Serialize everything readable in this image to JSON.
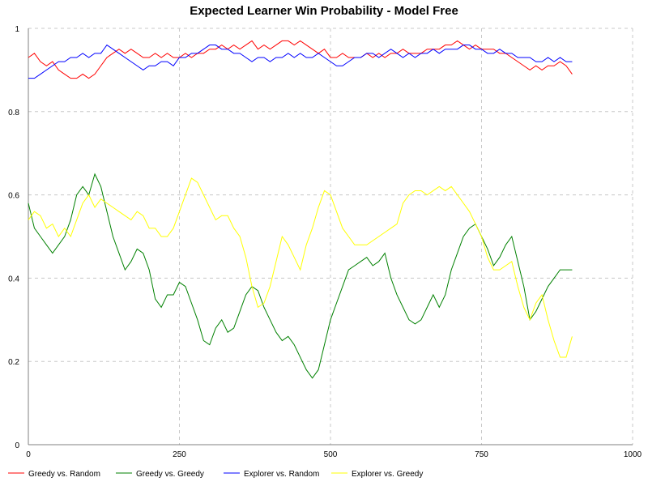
{
  "chart_data": {
    "type": "line",
    "title": "Expected Learner Win Probability - Model Free",
    "xlabel": "",
    "ylabel": "",
    "xlim": [
      0,
      1000
    ],
    "ylim": [
      0,
      1
    ],
    "x_ticks": [
      0,
      250,
      500,
      750,
      1000
    ],
    "x_tick_labels": [
      "0",
      "250",
      "500",
      "750",
      "1000"
    ],
    "y_ticks": [
      0,
      0.2,
      0.4,
      0.6,
      0.8,
      1
    ],
    "y_tick_labels": [
      "0",
      "0.2",
      "0.4",
      "0.6",
      "0.8",
      "1"
    ],
    "grid": true,
    "legend_position": "bottom",
    "x": [
      0,
      10,
      20,
      30,
      40,
      50,
      60,
      70,
      80,
      90,
      100,
      110,
      120,
      130,
      140,
      150,
      160,
      170,
      180,
      190,
      200,
      210,
      220,
      230,
      240,
      250,
      260,
      270,
      280,
      290,
      300,
      310,
      320,
      330,
      340,
      350,
      360,
      370,
      380,
      390,
      400,
      410,
      420,
      430,
      440,
      450,
      460,
      470,
      480,
      490,
      500,
      510,
      520,
      530,
      540,
      550,
      560,
      570,
      580,
      590,
      600,
      610,
      620,
      630,
      640,
      650,
      660,
      670,
      680,
      690,
      700,
      710,
      720,
      730,
      740,
      750,
      760,
      770,
      780,
      790,
      800,
      810,
      820,
      830,
      840,
      850,
      860,
      870,
      880,
      890,
      900
    ],
    "series": [
      {
        "name": "Greedy vs. Random",
        "color": "#ff0000",
        "values": [
          0.93,
          0.94,
          0.92,
          0.91,
          0.92,
          0.9,
          0.89,
          0.88,
          0.88,
          0.89,
          0.88,
          0.89,
          0.91,
          0.93,
          0.94,
          0.95,
          0.94,
          0.95,
          0.94,
          0.93,
          0.93,
          0.94,
          0.93,
          0.94,
          0.93,
          0.93,
          0.94,
          0.93,
          0.94,
          0.94,
          0.95,
          0.95,
          0.96,
          0.95,
          0.96,
          0.95,
          0.96,
          0.97,
          0.95,
          0.96,
          0.95,
          0.96,
          0.97,
          0.97,
          0.96,
          0.97,
          0.96,
          0.95,
          0.94,
          0.95,
          0.93,
          0.93,
          0.94,
          0.93,
          0.93,
          0.93,
          0.94,
          0.93,
          0.94,
          0.93,
          0.94,
          0.94,
          0.95,
          0.94,
          0.94,
          0.94,
          0.95,
          0.95,
          0.95,
          0.96,
          0.96,
          0.97,
          0.96,
          0.95,
          0.96,
          0.95,
          0.95,
          0.95,
          0.94,
          0.94,
          0.93,
          0.92,
          0.91,
          0.9,
          0.91,
          0.9,
          0.91,
          0.91,
          0.92,
          0.91,
          0.89
        ]
      },
      {
        "name": "Greedy vs. Greedy",
        "color": "#008000",
        "values": [
          0.58,
          0.52,
          0.5,
          0.48,
          0.46,
          0.48,
          0.5,
          0.54,
          0.6,
          0.62,
          0.6,
          0.65,
          0.62,
          0.56,
          0.5,
          0.46,
          0.42,
          0.44,
          0.47,
          0.46,
          0.42,
          0.35,
          0.33,
          0.36,
          0.36,
          0.39,
          0.38,
          0.34,
          0.3,
          0.25,
          0.24,
          0.28,
          0.3,
          0.27,
          0.28,
          0.32,
          0.36,
          0.38,
          0.37,
          0.33,
          0.3,
          0.27,
          0.25,
          0.26,
          0.24,
          0.21,
          0.18,
          0.16,
          0.18,
          0.24,
          0.3,
          0.34,
          0.38,
          0.42,
          0.43,
          0.44,
          0.45,
          0.43,
          0.44,
          0.46,
          0.4,
          0.36,
          0.33,
          0.3,
          0.29,
          0.3,
          0.33,
          0.36,
          0.33,
          0.36,
          0.42,
          0.46,
          0.5,
          0.52,
          0.53,
          0.5,
          0.47,
          0.43,
          0.45,
          0.48,
          0.5,
          0.44,
          0.38,
          0.3,
          0.32,
          0.35,
          0.38,
          0.4,
          0.42,
          0.42,
          0.42
        ]
      },
      {
        "name": "Explorer vs. Random",
        "color": "#0000ff",
        "values": [
          0.88,
          0.88,
          0.89,
          0.9,
          0.91,
          0.92,
          0.92,
          0.93,
          0.93,
          0.94,
          0.93,
          0.94,
          0.94,
          0.96,
          0.95,
          0.94,
          0.93,
          0.92,
          0.91,
          0.9,
          0.91,
          0.91,
          0.92,
          0.92,
          0.91,
          0.93,
          0.93,
          0.94,
          0.94,
          0.95,
          0.96,
          0.96,
          0.95,
          0.95,
          0.94,
          0.94,
          0.93,
          0.92,
          0.93,
          0.93,
          0.92,
          0.93,
          0.93,
          0.94,
          0.93,
          0.94,
          0.93,
          0.93,
          0.94,
          0.93,
          0.92,
          0.91,
          0.91,
          0.92,
          0.93,
          0.93,
          0.94,
          0.94,
          0.93,
          0.94,
          0.95,
          0.94,
          0.93,
          0.94,
          0.93,
          0.94,
          0.94,
          0.95,
          0.94,
          0.95,
          0.95,
          0.95,
          0.96,
          0.96,
          0.95,
          0.95,
          0.94,
          0.94,
          0.95,
          0.94,
          0.94,
          0.93,
          0.93,
          0.93,
          0.92,
          0.92,
          0.93,
          0.92,
          0.93,
          0.92,
          0.92
        ]
      },
      {
        "name": "Explorer vs. Greedy",
        "color": "#ffff00",
        "values": [
          0.54,
          0.56,
          0.55,
          0.52,
          0.53,
          0.5,
          0.52,
          0.5,
          0.54,
          0.58,
          0.6,
          0.57,
          0.59,
          0.58,
          0.57,
          0.56,
          0.55,
          0.54,
          0.56,
          0.55,
          0.52,
          0.52,
          0.5,
          0.5,
          0.52,
          0.56,
          0.6,
          0.64,
          0.63,
          0.6,
          0.57,
          0.54,
          0.55,
          0.55,
          0.52,
          0.5,
          0.45,
          0.38,
          0.33,
          0.34,
          0.38,
          0.44,
          0.5,
          0.48,
          0.45,
          0.42,
          0.48,
          0.52,
          0.57,
          0.61,
          0.6,
          0.56,
          0.52,
          0.5,
          0.48,
          0.48,
          0.48,
          0.49,
          0.5,
          0.51,
          0.52,
          0.53,
          0.58,
          0.6,
          0.61,
          0.61,
          0.6,
          0.61,
          0.62,
          0.61,
          0.62,
          0.6,
          0.58,
          0.56,
          0.53,
          0.5,
          0.45,
          0.42,
          0.42,
          0.43,
          0.44,
          0.38,
          0.33,
          0.3,
          0.34,
          0.36,
          0.3,
          0.25,
          0.21,
          0.21,
          0.26
        ]
      }
    ]
  }
}
